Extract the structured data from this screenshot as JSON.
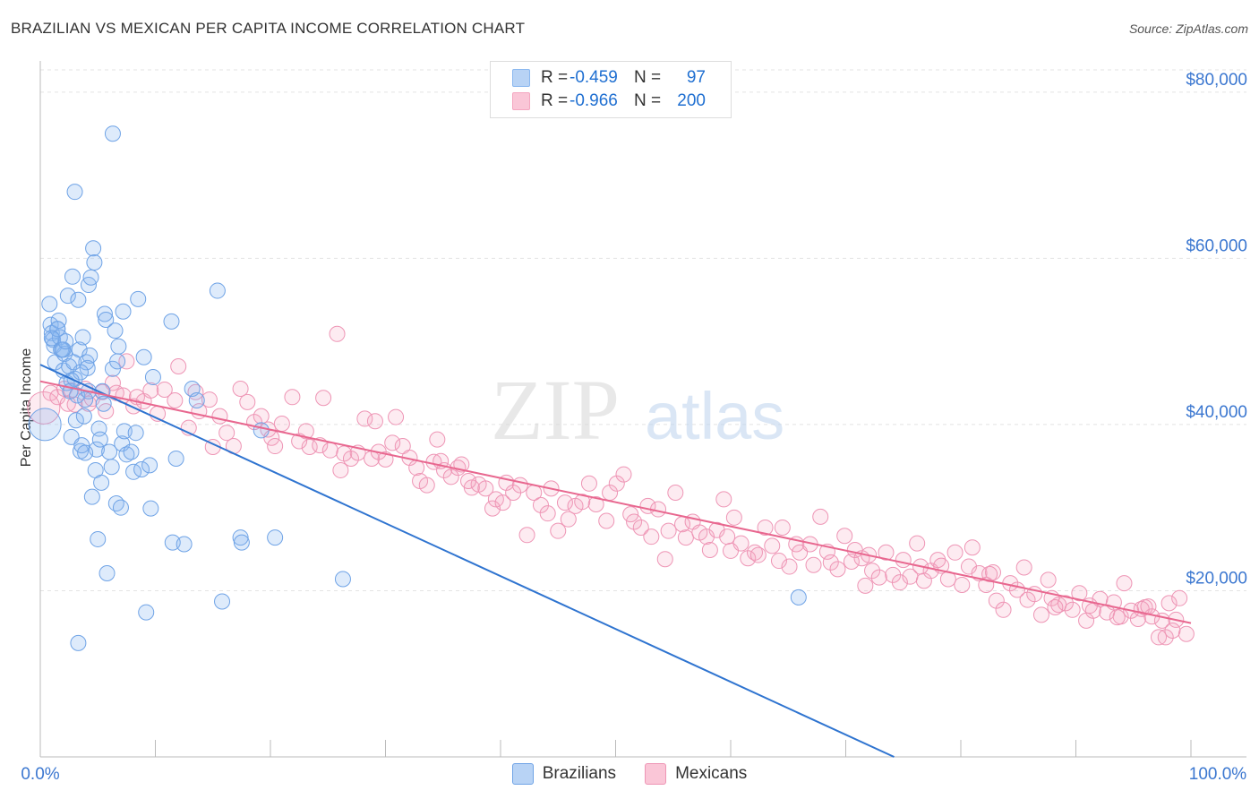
{
  "title": "BRAZILIAN VS MEXICAN PER CAPITA INCOME CORRELATION CHART",
  "source": "Source: ZipAtlas.com",
  "watermark": {
    "zip": "ZIP",
    "atlas": "atlas"
  },
  "legend": {
    "rows": [
      {
        "r_label": "R =",
        "r_value": "-0.459",
        "n_label": "N =",
        "n_value": "97",
        "color": "#8ab7ef"
      },
      {
        "r_label": "R =",
        "r_value": "-0.966",
        "n_label": "N =",
        "n_value": "200",
        "color": "#f4a6c0"
      }
    ]
  },
  "bottom_legend": {
    "brazilians": "Brazilians",
    "mexicans": "Mexicans"
  },
  "chart_data": {
    "type": "scatter",
    "xlabel": "",
    "ylabel": "Per Capita Income",
    "xlim": [
      0,
      100
    ],
    "ylim": [
      0,
      83000
    ],
    "x_tick_labels": [
      "0.0%",
      "100.0%"
    ],
    "y_ticks": [
      20000,
      40000,
      60000,
      80000
    ],
    "y_tick_labels": [
      "$20,000",
      "$40,000",
      "$60,000",
      "$80,000"
    ],
    "grid": "horizontal dashed",
    "series": [
      {
        "name": "Brazilians",
        "color": "#5b9be8",
        "trend": {
          "x": [
            0,
            74.2
          ],
          "y": [
            47200,
            0
          ]
        },
        "points": [
          [
            0.4,
            40000
          ],
          [
            0.8,
            54500
          ],
          [
            0.9,
            52000
          ],
          [
            1.0,
            51000
          ],
          [
            1.1,
            50200
          ],
          [
            1.2,
            49500
          ],
          [
            1.3,
            47500
          ],
          [
            1.5,
            51500
          ],
          [
            1.6,
            52500
          ],
          [
            1.7,
            50500
          ],
          [
            1.8,
            49000
          ],
          [
            2.0,
            46500
          ],
          [
            2.1,
            48500
          ],
          [
            2.3,
            45000
          ],
          [
            2.4,
            55500
          ],
          [
            2.5,
            47000
          ],
          [
            2.6,
            44000
          ],
          [
            2.7,
            38500
          ],
          [
            2.8,
            57800
          ],
          [
            3.0,
            45500
          ],
          [
            3.1,
            40500
          ],
          [
            3.2,
            43500
          ],
          [
            3.3,
            55000
          ],
          [
            3.4,
            49000
          ],
          [
            3.5,
            36800
          ],
          [
            3.6,
            37500
          ],
          [
            3.7,
            50500
          ],
          [
            3.8,
            41000
          ],
          [
            3.9,
            43000
          ],
          [
            4.0,
            47500
          ],
          [
            4.1,
            46800
          ],
          [
            4.2,
            56800
          ],
          [
            4.3,
            48300
          ],
          [
            4.4,
            57700
          ],
          [
            4.5,
            31300
          ],
          [
            4.6,
            61200
          ],
          [
            4.7,
            59500
          ],
          [
            4.8,
            34500
          ],
          [
            4.9,
            37000
          ],
          [
            5.0,
            26200
          ],
          [
            5.1,
            39500
          ],
          [
            5.2,
            38200
          ],
          [
            5.3,
            33000
          ],
          [
            5.4,
            44000
          ],
          [
            5.5,
            42500
          ],
          [
            5.6,
            53300
          ],
          [
            5.7,
            52600
          ],
          [
            5.8,
            22100
          ],
          [
            6.0,
            36700
          ],
          [
            6.2,
            34900
          ],
          [
            6.3,
            46700
          ],
          [
            6.5,
            51300
          ],
          [
            6.6,
            30500
          ],
          [
            6.7,
            47600
          ],
          [
            6.8,
            49400
          ],
          [
            7.0,
            30000
          ],
          [
            7.1,
            37700
          ],
          [
            7.2,
            53600
          ],
          [
            7.3,
            39200
          ],
          [
            7.5,
            36400
          ],
          [
            7.9,
            36700
          ],
          [
            8.1,
            34300
          ],
          [
            8.3,
            39000
          ],
          [
            8.5,
            55100
          ],
          [
            8.8,
            34600
          ],
          [
            9.0,
            48100
          ],
          [
            9.2,
            17400
          ],
          [
            9.5,
            35100
          ],
          [
            9.6,
            29900
          ],
          [
            9.8,
            45700
          ],
          [
            11.4,
            52400
          ],
          [
            11.5,
            25800
          ],
          [
            11.8,
            35900
          ],
          [
            12.5,
            25600
          ],
          [
            13.2,
            44300
          ],
          [
            13.6,
            42900
          ],
          [
            15.4,
            56100
          ],
          [
            15.8,
            18700
          ],
          [
            17.4,
            26400
          ],
          [
            17.5,
            25800
          ],
          [
            19.2,
            39300
          ],
          [
            20.4,
            26400
          ],
          [
            26.3,
            21400
          ],
          [
            65.9,
            19200
          ],
          [
            6.3,
            75000
          ],
          [
            3.0,
            68000
          ],
          [
            3.3,
            13700
          ],
          [
            1.5,
            51500
          ],
          [
            2.0,
            49000
          ],
          [
            2.9,
            47500
          ],
          [
            3.5,
            46300
          ],
          [
            1.9,
            49000
          ],
          [
            2.2,
            50000
          ],
          [
            4.2,
            44000
          ],
          [
            1.0,
            50400
          ],
          [
            2.7,
            45300
          ],
          [
            3.9,
            36600
          ]
        ]
      },
      {
        "name": "Mexicans",
        "color": "#f28cb1",
        "trend": {
          "x": [
            0,
            100
          ],
          "y": [
            45200,
            16100
          ]
        },
        "points": [
          [
            0.3,
            42000
          ],
          [
            0.9,
            43800
          ],
          [
            1.5,
            43300
          ],
          [
            2.1,
            44300
          ],
          [
            2.4,
            42500
          ],
          [
            2.7,
            44100
          ],
          [
            3.0,
            42400
          ],
          [
            3.9,
            44300
          ],
          [
            4.2,
            42500
          ],
          [
            4.5,
            43100
          ],
          [
            5.4,
            43900
          ],
          [
            5.7,
            41600
          ],
          [
            6.3,
            45000
          ],
          [
            6.6,
            43800
          ],
          [
            7.2,
            43500
          ],
          [
            7.5,
            47600
          ],
          [
            8.1,
            42200
          ],
          [
            8.4,
            43300
          ],
          [
            9.0,
            42800
          ],
          [
            9.6,
            44100
          ],
          [
            10.2,
            41300
          ],
          [
            10.8,
            44200
          ],
          [
            11.7,
            42900
          ],
          [
            12.0,
            47000
          ],
          [
            12.9,
            39600
          ],
          [
            13.5,
            43900
          ],
          [
            13.8,
            41600
          ],
          [
            14.7,
            43000
          ],
          [
            15.0,
            37300
          ],
          [
            15.6,
            41000
          ],
          [
            16.2,
            39000
          ],
          [
            16.8,
            37400
          ],
          [
            17.4,
            44300
          ],
          [
            18.0,
            42700
          ],
          [
            18.6,
            40300
          ],
          [
            19.2,
            41000
          ],
          [
            19.8,
            39400
          ],
          [
            20.1,
            38400
          ],
          [
            20.4,
            37400
          ],
          [
            21.0,
            40100
          ],
          [
            21.9,
            43300
          ],
          [
            22.5,
            38000
          ],
          [
            23.1,
            39200
          ],
          [
            23.4,
            37300
          ],
          [
            24.3,
            37500
          ],
          [
            24.6,
            43200
          ],
          [
            25.2,
            36900
          ],
          [
            25.8,
            50900
          ],
          [
            26.4,
            36500
          ],
          [
            27.0,
            35900
          ],
          [
            27.6,
            36600
          ],
          [
            28.2,
            40700
          ],
          [
            28.8,
            35900
          ],
          [
            29.4,
            36700
          ],
          [
            30.0,
            35800
          ],
          [
            30.6,
            37800
          ],
          [
            30.9,
            40900
          ],
          [
            31.5,
            37400
          ],
          [
            32.1,
            36000
          ],
          [
            32.7,
            34800
          ],
          [
            33.0,
            33200
          ],
          [
            33.6,
            32700
          ],
          [
            34.2,
            35500
          ],
          [
            34.5,
            38200
          ],
          [
            35.1,
            34500
          ],
          [
            35.7,
            33700
          ],
          [
            36.3,
            34800
          ],
          [
            36.6,
            35200
          ],
          [
            37.5,
            32400
          ],
          [
            38.1,
            32800
          ],
          [
            38.7,
            32300
          ],
          [
            39.3,
            29900
          ],
          [
            39.6,
            31000
          ],
          [
            40.2,
            30600
          ],
          [
            40.5,
            33000
          ],
          [
            41.1,
            31800
          ],
          [
            41.7,
            32700
          ],
          [
            42.3,
            26700
          ],
          [
            42.9,
            31800
          ],
          [
            43.5,
            30300
          ],
          [
            44.1,
            29300
          ],
          [
            44.4,
            32300
          ],
          [
            45.0,
            27200
          ],
          [
            45.6,
            30600
          ],
          [
            45.9,
            28600
          ],
          [
            46.5,
            30200
          ],
          [
            47.1,
            30700
          ],
          [
            47.7,
            32900
          ],
          [
            48.3,
            30400
          ],
          [
            49.2,
            28400
          ],
          [
            49.5,
            31800
          ],
          [
            50.1,
            32900
          ],
          [
            50.7,
            34000
          ],
          [
            51.3,
            29200
          ],
          [
            51.6,
            28300
          ],
          [
            52.2,
            27600
          ],
          [
            52.8,
            30200
          ],
          [
            53.1,
            26500
          ],
          [
            53.7,
            29800
          ],
          [
            54.3,
            23800
          ],
          [
            54.6,
            27200
          ],
          [
            55.2,
            31800
          ],
          [
            55.8,
            28000
          ],
          [
            56.1,
            26400
          ],
          [
            56.7,
            28300
          ],
          [
            57.3,
            27000
          ],
          [
            57.9,
            26500
          ],
          [
            58.2,
            24900
          ],
          [
            58.8,
            27300
          ],
          [
            59.4,
            31000
          ],
          [
            59.7,
            26500
          ],
          [
            60.3,
            28800
          ],
          [
            60.9,
            25700
          ],
          [
            61.5,
            23900
          ],
          [
            62.1,
            24600
          ],
          [
            62.4,
            24300
          ],
          [
            63.0,
            27600
          ],
          [
            63.6,
            25400
          ],
          [
            64.2,
            23600
          ],
          [
            64.5,
            27600
          ],
          [
            65.1,
            22900
          ],
          [
            65.7,
            25600
          ],
          [
            66.0,
            24600
          ],
          [
            66.9,
            25600
          ],
          [
            67.2,
            23100
          ],
          [
            67.8,
            28900
          ],
          [
            68.4,
            24700
          ],
          [
            68.7,
            23400
          ],
          [
            69.3,
            22600
          ],
          [
            69.9,
            26600
          ],
          [
            70.5,
            23500
          ],
          [
            70.8,
            24900
          ],
          [
            71.4,
            23900
          ],
          [
            72.0,
            24300
          ],
          [
            72.3,
            22400
          ],
          [
            72.9,
            21600
          ],
          [
            73.5,
            24600
          ],
          [
            74.1,
            21900
          ],
          [
            74.7,
            21000
          ],
          [
            75.0,
            23700
          ],
          [
            75.6,
            21700
          ],
          [
            76.2,
            25700
          ],
          [
            76.8,
            21200
          ],
          [
            77.4,
            22400
          ],
          [
            78.0,
            23700
          ],
          [
            78.3,
            23000
          ],
          [
            78.9,
            21400
          ],
          [
            79.5,
            24600
          ],
          [
            80.1,
            20700
          ],
          [
            80.7,
            22900
          ],
          [
            81.0,
            25200
          ],
          [
            81.6,
            22100
          ],
          [
            82.2,
            20700
          ],
          [
            82.8,
            22200
          ],
          [
            83.1,
            18800
          ],
          [
            83.7,
            17700
          ],
          [
            84.3,
            20900
          ],
          [
            84.9,
            20100
          ],
          [
            85.5,
            22800
          ],
          [
            85.8,
            18900
          ],
          [
            86.4,
            19600
          ],
          [
            87.0,
            17100
          ],
          [
            87.6,
            21300
          ],
          [
            87.9,
            19100
          ],
          [
            88.5,
            18300
          ],
          [
            89.1,
            18500
          ],
          [
            89.7,
            17700
          ],
          [
            90.3,
            19700
          ],
          [
            90.9,
            16400
          ],
          [
            91.5,
            17600
          ],
          [
            92.1,
            19000
          ],
          [
            92.7,
            17400
          ],
          [
            93.3,
            18600
          ],
          [
            93.9,
            16900
          ],
          [
            94.2,
            20900
          ],
          [
            94.8,
            17600
          ],
          [
            95.4,
            16600
          ],
          [
            96.0,
            18000
          ],
          [
            96.6,
            16900
          ],
          [
            97.2,
            14400
          ],
          [
            97.8,
            14400
          ],
          [
            98.1,
            18500
          ],
          [
            98.7,
            16500
          ],
          [
            99.0,
            19100
          ],
          [
            99.6,
            14800
          ],
          [
            26.1,
            34500
          ],
          [
            29.1,
            40400
          ],
          [
            34.8,
            35600
          ],
          [
            37.2,
            33200
          ],
          [
            60.0,
            24800
          ],
          [
            71.7,
            20600
          ],
          [
            76.5,
            22900
          ],
          [
            82.5,
            22000
          ],
          [
            88.2,
            18000
          ],
          [
            91.2,
            18200
          ],
          [
            93.6,
            16800
          ],
          [
            95.7,
            17800
          ],
          [
            97.5,
            16400
          ],
          [
            98.4,
            15200
          ],
          [
            96.3,
            18100
          ]
        ]
      }
    ]
  }
}
